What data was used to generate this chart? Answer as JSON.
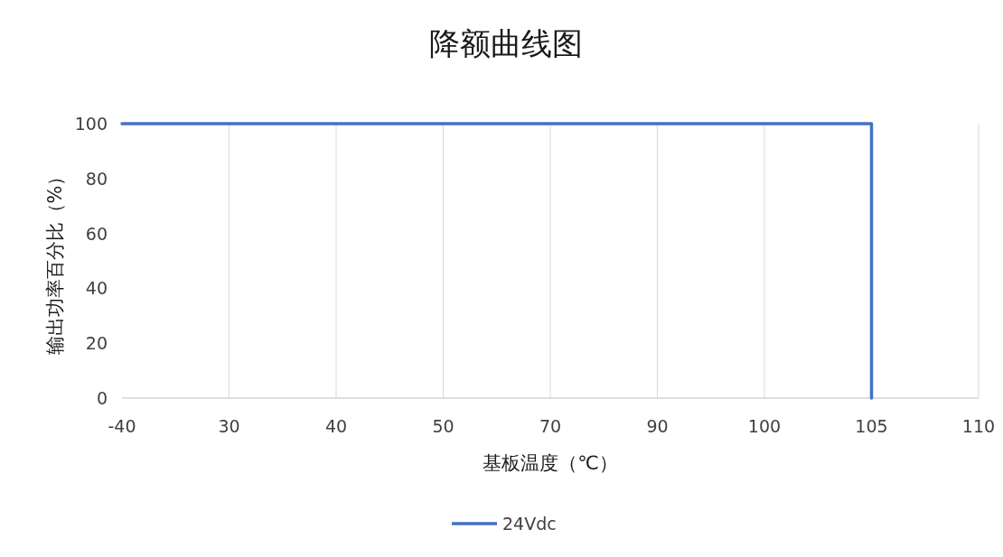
{
  "chart_data": {
    "type": "line",
    "title": "降额曲线图",
    "xlabel": "基板温度（℃）",
    "ylabel": "输出功率百分比（%）",
    "categories": [
      "-40",
      "30",
      "40",
      "50",
      "70",
      "90",
      "100",
      "105",
      "110"
    ],
    "series": [
      {
        "name": "24Vdc",
        "color": "#4472c4",
        "x": [
          "-40",
          "30",
          "40",
          "50",
          "70",
          "90",
          "100",
          "105",
          "105"
        ],
        "values": [
          100,
          100,
          100,
          100,
          100,
          100,
          100,
          100,
          0
        ]
      }
    ],
    "ylim": [
      0,
      100
    ],
    "yticks": [
      0,
      20,
      40,
      60,
      80,
      100
    ],
    "grid": "x",
    "legend": "bottom"
  }
}
